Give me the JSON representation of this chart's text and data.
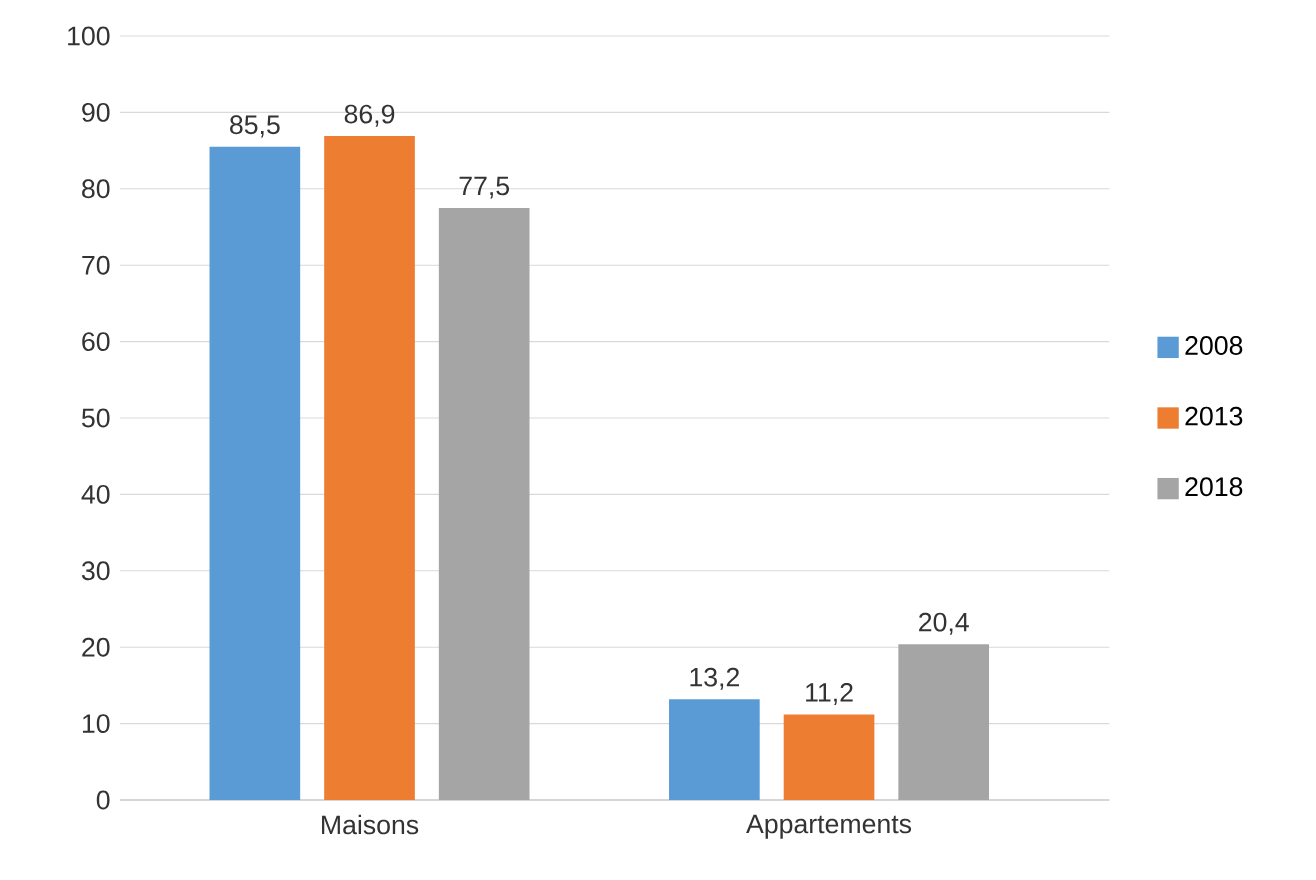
{
  "chart_data": {
    "type": "bar",
    "categories": [
      "Maisons",
      "Appartements"
    ],
    "series": [
      {
        "name": "2008",
        "color": "#5b9bd5",
        "values": [
          85.5,
          13.2
        ],
        "value_labels": [
          "85,5",
          "13,2"
        ]
      },
      {
        "name": "2013",
        "color": "#ed7d31",
        "values": [
          86.9,
          11.2
        ],
        "value_labels": [
          "86,9",
          "11,2"
        ]
      },
      {
        "name": "2018",
        "color": "#a5a5a5",
        "values": [
          77.5,
          20.4
        ],
        "value_labels": [
          "77,5",
          "20,4"
        ]
      }
    ],
    "ylim": [
      0,
      100
    ],
    "yticks": [
      0,
      10,
      20,
      30,
      40,
      50,
      60,
      70,
      80,
      90,
      100
    ],
    "grid": "y",
    "legend": "right"
  }
}
